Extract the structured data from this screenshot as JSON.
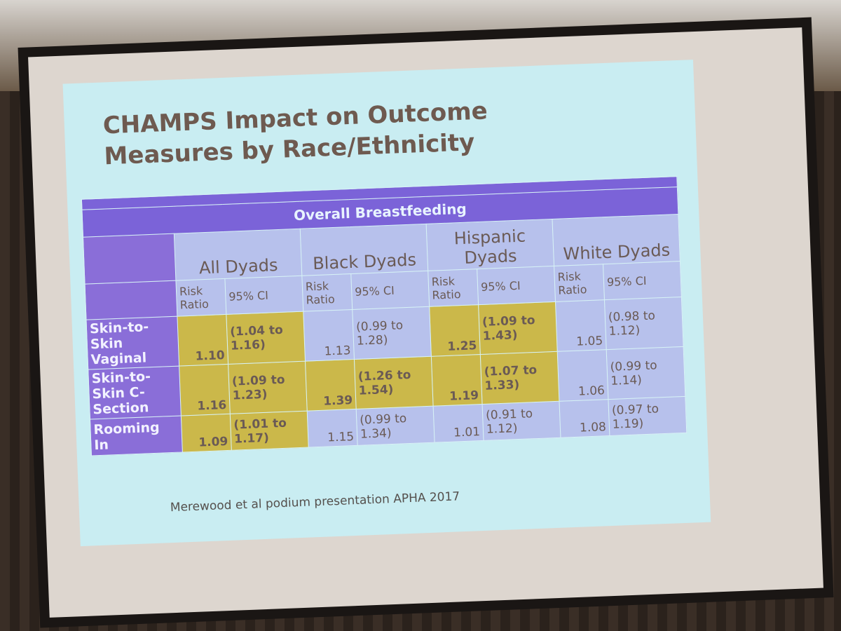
{
  "slide": {
    "title": "CHAMPS Impact on Outcome Measures by Race/Ethnicity",
    "table": {
      "caption": "Overall Breastfeeding",
      "groups": [
        "All Dyads",
        "Black Dyads",
        "Hispanic Dyads",
        "White Dyads"
      ],
      "subheaders": [
        "Risk Ratio",
        "95% CI"
      ],
      "highlight_color": "#cbb84a",
      "rows": [
        {
          "label": "Skin-to-Skin Vaginal",
          "cells": [
            {
              "ratio": "1.10",
              "ci": "(1.04 to 1.16)",
              "highlight": true
            },
            {
              "ratio": "1.13",
              "ci": "(0.99 to 1.28)",
              "highlight": false
            },
            {
              "ratio": "1.25",
              "ci": "(1.09 to 1.43)",
              "highlight": true
            },
            {
              "ratio": "1.05",
              "ci": "(0.98 to 1.12)",
              "highlight": false
            }
          ]
        },
        {
          "label": "Skin-to-Skin C-Section",
          "cells": [
            {
              "ratio": "1.16",
              "ci": "(1.09 to 1.23)",
              "highlight": true
            },
            {
              "ratio": "1.39",
              "ci": "(1.26 to 1.54)",
              "highlight": true
            },
            {
              "ratio": "1.19",
              "ci": "(1.07 to 1.33)",
              "highlight": true
            },
            {
              "ratio": "1.06",
              "ci": "(0.99 to 1.14)",
              "highlight": false
            }
          ]
        },
        {
          "label": "Rooming In",
          "cells": [
            {
              "ratio": "1.09",
              "ci": "(1.01 to 1.17)",
              "highlight": true
            },
            {
              "ratio": "1.15",
              "ci": "(0.99 to 1.34)",
              "highlight": false
            },
            {
              "ratio": "1.01",
              "ci": "(0.91 to 1.12)",
              "highlight": false
            },
            {
              "ratio": "1.08",
              "ci": "(0.97 to 1.19)",
              "highlight": false
            }
          ]
        }
      ]
    },
    "footer": "Merewood et al podium presentation APHA 2017"
  }
}
